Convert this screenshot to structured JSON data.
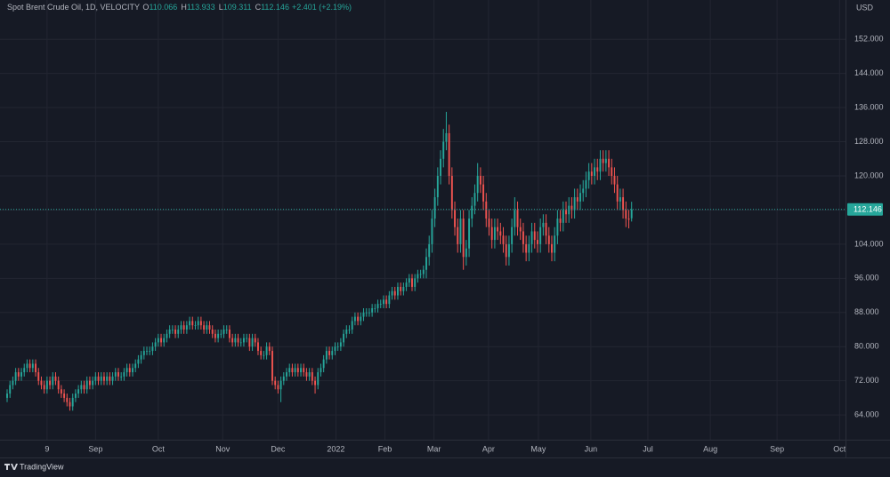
{
  "header": {
    "symbol": "Spot Brent Crude Oil, 1D, VELOCITY",
    "ohlc_labels": [
      "O",
      "H",
      "L",
      "C"
    ],
    "change": "+2.401 (+2.19%)"
  },
  "footer": {
    "brand": "TradingView"
  },
  "chart_data": {
    "type": "candlestick",
    "currency": "USD",
    "up_color": "#26a69a",
    "down_color": "#ef5350",
    "grid": true,
    "xlim": [
      -2.5,
      294
    ],
    "ylim": [
      58.2,
      161.2
    ],
    "yticks": [
      {
        "value": 64,
        "label": "64.000"
      },
      {
        "value": 72,
        "label": "72.000"
      },
      {
        "value": 80,
        "label": "80.000"
      },
      {
        "value": 88,
        "label": "88.000"
      },
      {
        "value": 96,
        "label": "96.000"
      },
      {
        "value": 104,
        "label": "104.000"
      },
      {
        "value": 112,
        "label": "112.000"
      },
      {
        "value": 120,
        "label": "120.000"
      },
      {
        "value": 128,
        "label": "128.000"
      },
      {
        "value": 136,
        "label": "136.000"
      },
      {
        "value": 144,
        "label": "144.000"
      },
      {
        "value": 152,
        "label": "152.000"
      }
    ],
    "xticks": [
      {
        "value": 14,
        "label": "9"
      },
      {
        "value": 31,
        "label": "Sep"
      },
      {
        "value": 53,
        "label": "Oct"
      },
      {
        "value": 75.6,
        "label": "Nov"
      },
      {
        "value": 95,
        "label": "Dec"
      },
      {
        "value": 115.3,
        "label": "2022"
      },
      {
        "value": 132.5,
        "label": "Feb"
      },
      {
        "value": 149.7,
        "label": "Mar"
      },
      {
        "value": 168.8,
        "label": "Apr"
      },
      {
        "value": 186.3,
        "label": "May"
      },
      {
        "value": 204.7,
        "label": "Jun"
      },
      {
        "value": 224.7,
        "label": "Jul"
      },
      {
        "value": 246.6,
        "label": "Aug"
      },
      {
        "value": 270,
        "label": "Sep"
      },
      {
        "value": 291.9,
        "label": "Oct"
      }
    ],
    "open": [
      68,
      69,
      71,
      72,
      74,
      73,
      74,
      75,
      76,
      75,
      76,
      74,
      72,
      71,
      70,
      72,
      71,
      73,
      72,
      70,
      69,
      68,
      67,
      66,
      68,
      69,
      70,
      71,
      70,
      72,
      71,
      72,
      73,
      72,
      73,
      72,
      73,
      72,
      73,
      74,
      73,
      73,
      74,
      75,
      74,
      75,
      76,
      77,
      78,
      79,
      79,
      79,
      80,
      81,
      82,
      81,
      82,
      83,
      84,
      84,
      83,
      84,
      85,
      84,
      85,
      86,
      85,
      85,
      86,
      85,
      84,
      85,
      84,
      83,
      82,
      83,
      83,
      84,
      84,
      82,
      81,
      82,
      81,
      81,
      82,
      82,
      80,
      82,
      81,
      79,
      78,
      78,
      80,
      79,
      72,
      71,
      70,
      72,
      73,
      74,
      75,
      74,
      75,
      74,
      75,
      74,
      73,
      74,
      72,
      71,
      74,
      75,
      77,
      79,
      78,
      79,
      80,
      80,
      81,
      83,
      84,
      84,
      86,
      87,
      86,
      87,
      88,
      88,
      88,
      89,
      89,
      90,
      90,
      91,
      90,
      92,
      93,
      92,
      94,
      93,
      94,
      95,
      96,
      94,
      96,
      97,
      97,
      98,
      101,
      104,
      110,
      115,
      120,
      124,
      128,
      130,
      120,
      112,
      108,
      104,
      110,
      101,
      103,
      110,
      113,
      116,
      120,
      118,
      114,
      110,
      108,
      105,
      108,
      107,
      106,
      104,
      101,
      104,
      108,
      112,
      108,
      107,
      104,
      102,
      104,
      107,
      105,
      104,
      108,
      109,
      106,
      104,
      102,
      106,
      110,
      109,
      112,
      111,
      113,
      112,
      115,
      114,
      116,
      117,
      119,
      121,
      120,
      122,
      121,
      124,
      123,
      124,
      122,
      120,
      118,
      114,
      115,
      112,
      110,
      110.066
    ],
    "high": [
      70,
      72,
      73,
      75,
      75,
      75,
      76,
      77,
      77,
      77,
      77,
      75,
      73,
      72,
      73,
      73,
      74,
      74,
      73,
      71,
      70,
      69,
      68,
      69,
      70,
      71,
      72,
      72,
      73,
      73,
      73,
      74,
      74,
      74,
      74,
      74,
      74,
      74,
      75,
      75,
      74,
      75,
      76,
      76,
      76,
      77,
      78,
      79,
      80,
      80,
      80,
      81,
      82,
      83,
      83,
      83,
      84,
      85,
      85,
      85,
      85,
      86,
      86,
      86,
      87,
      87,
      86,
      87,
      87,
      86,
      86,
      86,
      85,
      84,
      84,
      84,
      85,
      85,
      85,
      83,
      83,
      83,
      82,
      83,
      83,
      83,
      83,
      83,
      82,
      80,
      79,
      81,
      81,
      80,
      73,
      72,
      73,
      74,
      75,
      76,
      76,
      76,
      76,
      76,
      76,
      75,
      75,
      75,
      73,
      75,
      76,
      78,
      80,
      80,
      80,
      81,
      81,
      82,
      84,
      85,
      85,
      87,
      88,
      88,
      88,
      89,
      89,
      89,
      90,
      90,
      91,
      91,
      92,
      92,
      93,
      94,
      94,
      95,
      95,
      95,
      96,
      97,
      97,
      97,
      98,
      98,
      99,
      103,
      106,
      112,
      117,
      122,
      126,
      131,
      135,
      132,
      122,
      114,
      110,
      112,
      112,
      105,
      112,
      115,
      118,
      123,
      122,
      120,
      116,
      112,
      110,
      110,
      110,
      109,
      108,
      106,
      106,
      110,
      115,
      114,
      110,
      109,
      106,
      106,
      109,
      109,
      107,
      110,
      111,
      111,
      108,
      106,
      108,
      112,
      112,
      114,
      114,
      115,
      115,
      117,
      117,
      118,
      119,
      121,
      123,
      123,
      124,
      124,
      126,
      126,
      126,
      126,
      124,
      122,
      120,
      117,
      117,
      114,
      112,
      113.933
    ],
    "low": [
      67,
      68,
      70,
      71,
      72,
      72,
      73,
      74,
      74,
      74,
      73,
      71,
      70,
      69,
      69,
      70,
      70,
      71,
      69,
      68,
      67,
      66,
      65,
      65,
      67,
      68,
      69,
      69,
      69,
      70,
      70,
      71,
      71,
      71,
      71,
      71,
      71,
      71,
      72,
      72,
      72,
      72,
      73,
      73,
      73,
      74,
      75,
      76,
      77,
      78,
      78,
      78,
      79,
      80,
      80,
      80,
      81,
      82,
      83,
      82,
      82,
      83,
      83,
      83,
      84,
      84,
      84,
      84,
      84,
      83,
      83,
      83,
      82,
      81,
      81,
      82,
      82,
      83,
      81,
      80,
      80,
      80,
      80,
      80,
      81,
      79,
      79,
      80,
      78,
      77,
      77,
      77,
      78,
      71,
      70,
      69,
      67,
      71,
      72,
      73,
      73,
      73,
      73,
      73,
      73,
      72,
      72,
      71,
      69,
      70,
      73,
      74,
      76,
      77,
      77,
      78,
      79,
      79,
      80,
      82,
      83,
      83,
      85,
      85,
      85,
      86,
      87,
      87,
      87,
      88,
      88,
      89,
      89,
      89,
      89,
      91,
      91,
      91,
      92,
      92,
      93,
      94,
      93,
      93,
      95,
      96,
      96,
      96,
      99,
      102,
      108,
      113,
      118,
      122,
      126,
      118,
      110,
      106,
      102,
      102,
      98,
      99,
      101,
      108,
      111,
      114,
      116,
      112,
      108,
      106,
      103,
      103,
      105,
      104,
      102,
      99,
      99,
      102,
      106,
      106,
      105,
      102,
      100,
      100,
      102,
      103,
      102,
      102,
      106,
      104,
      102,
      100,
      100,
      104,
      107,
      107,
      109,
      109,
      110,
      110,
      112,
      112,
      114,
      115,
      117,
      118,
      118,
      119,
      119,
      121,
      121,
      120,
      118,
      116,
      112,
      112,
      110,
      108,
      107.7,
      109.311
    ],
    "close": [
      69,
      71,
      72,
      74,
      73,
      74,
      75,
      76,
      75,
      76,
      74,
      72,
      71,
      70,
      72,
      71,
      73,
      72,
      70,
      69,
      68,
      67,
      66,
      68,
      69,
      70,
      71,
      70,
      72,
      71,
      72,
      73,
      72,
      73,
      72,
      73,
      72,
      73,
      74,
      73,
      73,
      74,
      75,
      74,
      75,
      76,
      77,
      78,
      79,
      79,
      79,
      80,
      81,
      82,
      81,
      82,
      83,
      84,
      84,
      83,
      84,
      85,
      84,
      85,
      86,
      85,
      85,
      86,
      85,
      84,
      85,
      84,
      83,
      82,
      83,
      83,
      84,
      84,
      82,
      81,
      82,
      81,
      81,
      82,
      82,
      80,
      82,
      81,
      79,
      78,
      78,
      80,
      79,
      72,
      71,
      70,
      72,
      73,
      74,
      75,
      74,
      75,
      74,
      75,
      74,
      73,
      74,
      72,
      71,
      74,
      75,
      77,
      79,
      78,
      79,
      80,
      80,
      81,
      83,
      84,
      84,
      86,
      87,
      86,
      87,
      88,
      88,
      88,
      89,
      89,
      90,
      90,
      91,
      90,
      92,
      93,
      92,
      94,
      93,
      94,
      95,
      96,
      94,
      96,
      97,
      97,
      98,
      101,
      104,
      110,
      115,
      120,
      124,
      128,
      130,
      120,
      112,
      108,
      104,
      110,
      101,
      103,
      110,
      113,
      116,
      120,
      118,
      114,
      110,
      108,
      105,
      108,
      107,
      106,
      104,
      101,
      104,
      108,
      112,
      108,
      107,
      104,
      102,
      104,
      107,
      105,
      104,
      108,
      109,
      106,
      104,
      102,
      106,
      110,
      109,
      112,
      111,
      113,
      112,
      115,
      114,
      116,
      117,
      119,
      121,
      120,
      122,
      121,
      124,
      123,
      124,
      122,
      120,
      118,
      114,
      115,
      112,
      110,
      109.745,
      112.146
    ]
  }
}
